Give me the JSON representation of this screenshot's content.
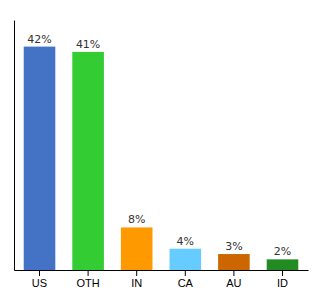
{
  "chart_data": {
    "type": "bar",
    "categories": [
      "US",
      "OTH",
      "IN",
      "CA",
      "AU",
      "ID"
    ],
    "values": [
      42,
      41,
      8,
      4,
      3,
      2
    ],
    "value_labels": [
      "42%",
      "41%",
      "8%",
      "4%",
      "3%",
      "2%"
    ],
    "colors": [
      "#4472c4",
      "#33cc33",
      "#ff9900",
      "#66ccff",
      "#cc6600",
      "#228B22"
    ],
    "ylim": [
      0,
      47
    ],
    "data_labels": true,
    "tick_labels": "x"
  }
}
